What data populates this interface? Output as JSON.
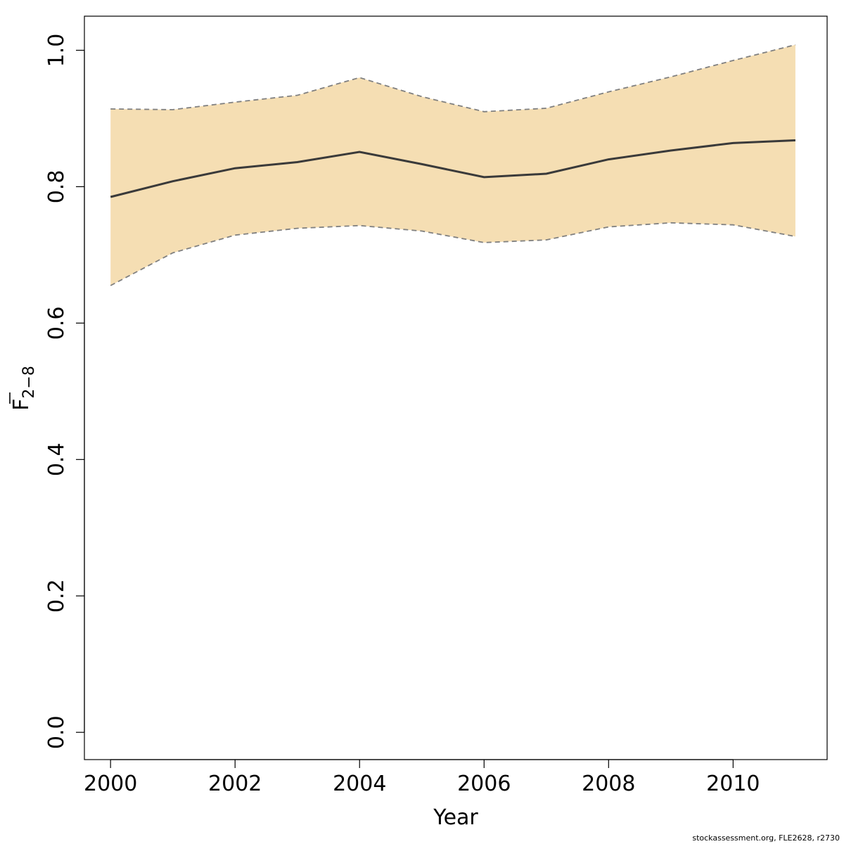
{
  "chart_data": {
    "type": "line",
    "title": "",
    "xlabel": "Year",
    "ylabel": {
      "base": "F",
      "subscript": "2−8",
      "overline": true
    },
    "x": [
      2000,
      2001,
      2002,
      2003,
      2004,
      2005,
      2006,
      2007,
      2008,
      2009,
      2010,
      2011
    ],
    "series": [
      {
        "role": "estimate",
        "values": [
          0.785,
          0.808,
          0.827,
          0.836,
          0.851,
          0.833,
          0.814,
          0.819,
          0.84,
          0.853,
          0.864,
          0.868
        ]
      },
      {
        "role": "upper",
        "values": [
          0.914,
          0.913,
          0.924,
          0.934,
          0.96,
          0.932,
          0.91,
          0.915,
          0.939,
          0.961,
          0.985,
          1.008
        ]
      },
      {
        "role": "lower",
        "values": [
          0.655,
          0.703,
          0.729,
          0.739,
          0.743,
          0.735,
          0.718,
          0.722,
          0.741,
          0.747,
          0.744,
          0.727
        ]
      }
    ],
    "xlim": [
      1999.58,
      2011.51
    ],
    "ylim": [
      -0.04,
      1.05
    ],
    "xticks": [
      "2000",
      "2002",
      "2004",
      "2006",
      "2008",
      "2010"
    ],
    "yticks": [
      "0.0",
      "0.2",
      "0.4",
      "0.6",
      "0.8",
      "1.0"
    ],
    "grid": false,
    "legend": "none",
    "colors": {
      "band_fill": "#f5deb3",
      "band_edge": "#808080",
      "estimate_line": "#3a3a3a",
      "axis": "#000000"
    }
  },
  "footer": {
    "credit": "stockassessment.org, FLE2628, r2730"
  }
}
